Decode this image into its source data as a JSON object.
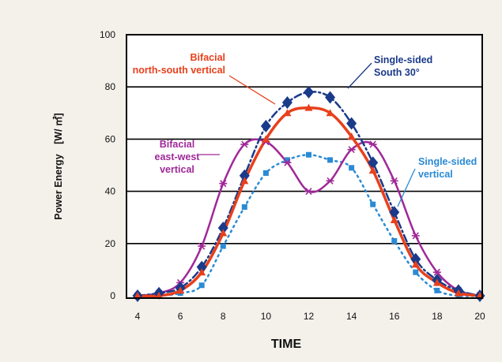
{
  "chart_data": {
    "type": "line",
    "xlabel": "TIME",
    "ylabel": "Power Energy　[W/ ㎡]",
    "xlim": [
      4,
      20
    ],
    "ylim": [
      0,
      100
    ],
    "x_ticks": [
      "4",
      "6",
      "8",
      "10",
      "12",
      "14",
      "16",
      "18",
      "20"
    ],
    "y_ticks": [
      "0",
      "20",
      "40",
      "60",
      "80",
      "100"
    ],
    "grid": true,
    "x": [
      4,
      5,
      6,
      7,
      8,
      9,
      10,
      11,
      12,
      13,
      14,
      15,
      16,
      17,
      18,
      19,
      20
    ],
    "series": [
      {
        "key": "ss30",
        "lines": [
          "Single-sided",
          "South 30°"
        ],
        "color": "#1a3a8a",
        "style": "dash-dot",
        "marker": "diamond",
        "values": [
          0,
          1,
          3,
          11,
          26,
          46,
          65,
          74,
          78,
          76,
          66,
          51,
          32,
          14,
          6,
          2,
          0
        ]
      },
      {
        "key": "bns",
        "lines": [
          "Bifacial",
          "north-south vertical"
        ],
        "color": "#e8401c",
        "style": "solid",
        "marker": "triangle",
        "values": [
          0,
          0,
          2,
          9,
          24,
          44,
          60,
          70,
          72,
          70,
          61,
          48,
          29,
          12,
          5,
          1,
          0
        ]
      },
      {
        "key": "bew",
        "lines": [
          "Bifacial",
          "east-west",
          "vertical"
        ],
        "color": "#a02898",
        "style": "solid",
        "marker": "star",
        "values": [
          0,
          1,
          5,
          19,
          43,
          58,
          59,
          51,
          40,
          44,
          56,
          58,
          44,
          23,
          9,
          2,
          0
        ]
      },
      {
        "key": "ssv",
        "lines": [
          "Single-sided",
          "vertical"
        ],
        "color": "#2a8ad4",
        "style": "dot",
        "marker": "square",
        "values": [
          0,
          0,
          1,
          4,
          19,
          34,
          47,
          52,
          54,
          52,
          49,
          35,
          21,
          9,
          2,
          0,
          0
        ]
      }
    ]
  }
}
